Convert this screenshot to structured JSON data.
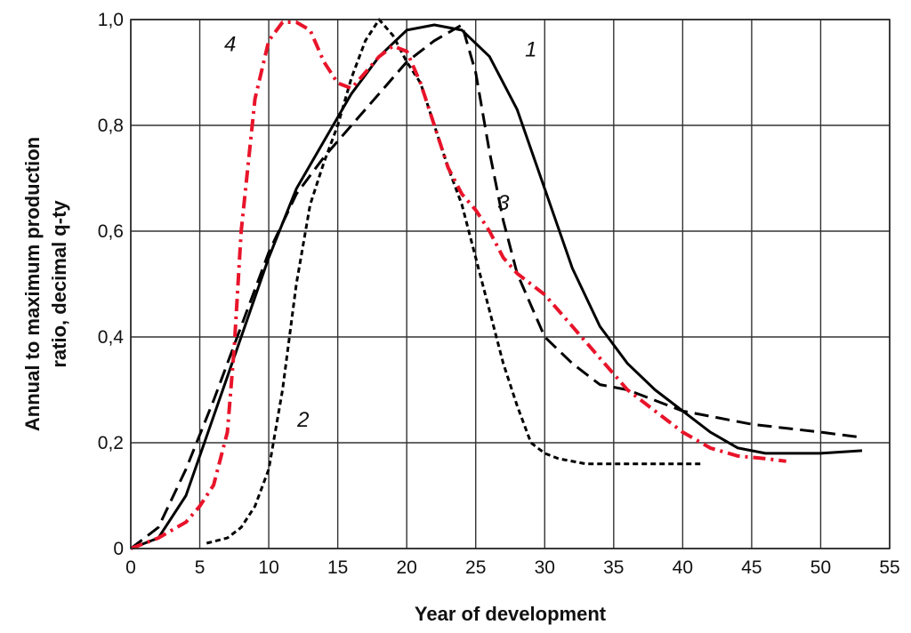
{
  "chart_data": {
    "type": "line",
    "title": "",
    "xlabel": "Year of development",
    "ylabel_lines": [
      "Annual to maximum production",
      "ratio, decimal q-ty"
    ],
    "xlim": [
      0,
      55
    ],
    "ylim": [
      0,
      1.0
    ],
    "x_ticks": [
      0,
      5,
      10,
      15,
      20,
      25,
      30,
      35,
      40,
      45,
      50,
      55
    ],
    "x_tick_labels": [
      "0",
      "5",
      "10",
      "15",
      "20",
      "25",
      "30",
      "35",
      "40",
      "45",
      "50",
      "55"
    ],
    "y_ticks": [
      0,
      0.2,
      0.4,
      0.6,
      0.8,
      1.0
    ],
    "y_tick_labels": [
      "0",
      "0,2",
      "0,4",
      "0,6",
      "0,8",
      "1,0"
    ],
    "grid": true,
    "legend": "none",
    "series": [
      {
        "label": "1",
        "label_pos": [
          29,
          0.93
        ],
        "color": "#000000",
        "style": "solid",
        "points": [
          [
            0,
            0
          ],
          [
            2,
            0.02
          ],
          [
            4,
            0.1
          ],
          [
            6,
            0.25
          ],
          [
            8,
            0.4
          ],
          [
            10,
            0.55
          ],
          [
            12,
            0.68
          ],
          [
            14,
            0.77
          ],
          [
            16,
            0.86
          ],
          [
            18,
            0.93
          ],
          [
            20,
            0.98
          ],
          [
            22,
            0.99
          ],
          [
            24,
            0.98
          ],
          [
            26,
            0.93
          ],
          [
            28,
            0.83
          ],
          [
            30,
            0.68
          ],
          [
            32,
            0.53
          ],
          [
            34,
            0.42
          ],
          [
            36,
            0.35
          ],
          [
            38,
            0.3
          ],
          [
            40,
            0.26
          ],
          [
            42,
            0.22
          ],
          [
            44,
            0.19
          ],
          [
            46,
            0.18
          ],
          [
            48,
            0.18
          ],
          [
            50,
            0.18
          ],
          [
            53,
            0.185
          ]
        ]
      },
      {
        "label": "2",
        "label_pos": [
          12.5,
          0.23
        ],
        "color": "#000000",
        "style": "short-dash",
        "points": [
          [
            5.5,
            0.01
          ],
          [
            7,
            0.02
          ],
          [
            8,
            0.04
          ],
          [
            9,
            0.08
          ],
          [
            10,
            0.15
          ],
          [
            11,
            0.3
          ],
          [
            12,
            0.5
          ],
          [
            13,
            0.65
          ],
          [
            14,
            0.73
          ],
          [
            15,
            0.8
          ],
          [
            16,
            0.89
          ],
          [
            17,
            0.96
          ],
          [
            18,
            1.0
          ],
          [
            19,
            0.97
          ],
          [
            20,
            0.92
          ],
          [
            21,
            0.88
          ],
          [
            22,
            0.8
          ],
          [
            23,
            0.72
          ],
          [
            24,
            0.65
          ],
          [
            25,
            0.55
          ],
          [
            26,
            0.45
          ],
          [
            27,
            0.35
          ],
          [
            28,
            0.27
          ],
          [
            29,
            0.2
          ],
          [
            30,
            0.18
          ],
          [
            31,
            0.17
          ],
          [
            33,
            0.16
          ],
          [
            36,
            0.16
          ],
          [
            41.5,
            0.16
          ]
        ]
      },
      {
        "label": "3",
        "label_pos": [
          27,
          0.64
        ],
        "color": "#000000",
        "style": "long-dash",
        "points": [
          [
            0,
            0
          ],
          [
            2,
            0.04
          ],
          [
            4,
            0.15
          ],
          [
            6,
            0.28
          ],
          [
            8,
            0.42
          ],
          [
            10,
            0.56
          ],
          [
            12,
            0.67
          ],
          [
            14,
            0.74
          ],
          [
            16,
            0.8
          ],
          [
            18,
            0.86
          ],
          [
            20,
            0.92
          ],
          [
            22,
            0.96
          ],
          [
            24,
            0.99
          ],
          [
            25,
            0.9
          ],
          [
            26,
            0.75
          ],
          [
            27,
            0.62
          ],
          [
            28,
            0.52
          ],
          [
            29,
            0.46
          ],
          [
            30,
            0.4
          ],
          [
            32,
            0.35
          ],
          [
            34,
            0.31
          ],
          [
            36,
            0.3
          ],
          [
            38,
            0.28
          ],
          [
            40,
            0.26
          ],
          [
            45,
            0.235
          ],
          [
            50,
            0.22
          ],
          [
            53,
            0.21
          ]
        ]
      },
      {
        "label": "4",
        "label_pos": [
          7.2,
          0.94
        ],
        "color": "#e8142a",
        "style": "dash-dot",
        "points": [
          [
            0,
            0
          ],
          [
            2,
            0.02
          ],
          [
            4,
            0.05
          ],
          [
            5,
            0.08
          ],
          [
            6,
            0.12
          ],
          [
            7,
            0.22
          ],
          [
            7.5,
            0.38
          ],
          [
            8,
            0.6
          ],
          [
            9,
            0.85
          ],
          [
            10,
            0.96
          ],
          [
            11,
            0.995
          ],
          [
            12,
            0.995
          ],
          [
            13,
            0.98
          ],
          [
            14,
            0.92
          ],
          [
            15,
            0.88
          ],
          [
            16,
            0.87
          ],
          [
            17,
            0.9
          ],
          [
            18,
            0.93
          ],
          [
            19,
            0.95
          ],
          [
            20,
            0.94
          ],
          [
            21,
            0.88
          ],
          [
            22,
            0.8
          ],
          [
            23,
            0.72
          ],
          [
            24,
            0.67
          ],
          [
            25,
            0.64
          ],
          [
            26,
            0.6
          ],
          [
            27,
            0.55
          ],
          [
            28,
            0.52
          ],
          [
            30,
            0.48
          ],
          [
            32,
            0.42
          ],
          [
            34,
            0.36
          ],
          [
            36,
            0.3
          ],
          [
            38,
            0.26
          ],
          [
            40,
            0.22
          ],
          [
            42,
            0.19
          ],
          [
            44,
            0.175
          ],
          [
            46,
            0.17
          ],
          [
            47.5,
            0.165
          ]
        ]
      }
    ]
  }
}
